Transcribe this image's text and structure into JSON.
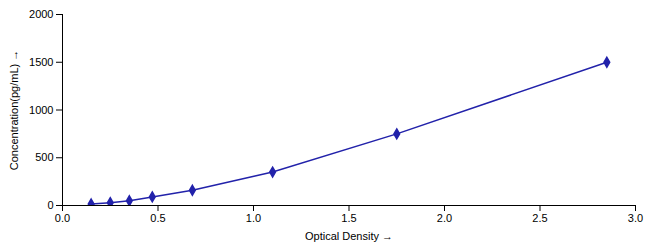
{
  "chart_data": {
    "type": "line",
    "xlabel": "Optical Density",
    "ylabel": "Concentration(pg/mL)",
    "x": [
      0.15,
      0.25,
      0.35,
      0.47,
      0.68,
      1.1,
      1.75,
      2.85
    ],
    "values": [
      15,
      30,
      50,
      90,
      160,
      350,
      750,
      1500
    ],
    "xerr": [
      0.01,
      0.01,
      0.01,
      0.01,
      0.01,
      0.01,
      0.01,
      0.01
    ],
    "yerr": [
      5,
      5,
      5,
      5,
      6,
      8,
      12,
      18
    ],
    "color": "#2222aa",
    "marker": "diamond",
    "line_style": "solid",
    "xlim": [
      0.0,
      3.0
    ],
    "ylim": [
      0,
      2000
    ],
    "xticks": [
      {
        "value": 0,
        "label": "0.0"
      },
      0.5,
      {
        "value": 1.0,
        "label": "1.0"
      },
      {
        "value": 1.5,
        "label": "1.5"
      },
      {
        "value": 2.0,
        "label": "2.0"
      },
      2.5,
      {
        "value": 3.0,
        "label": "3.0"
      }
    ],
    "yticks": [
      0,
      500,
      1000,
      1500,
      2000
    ],
    "grid": false
  }
}
